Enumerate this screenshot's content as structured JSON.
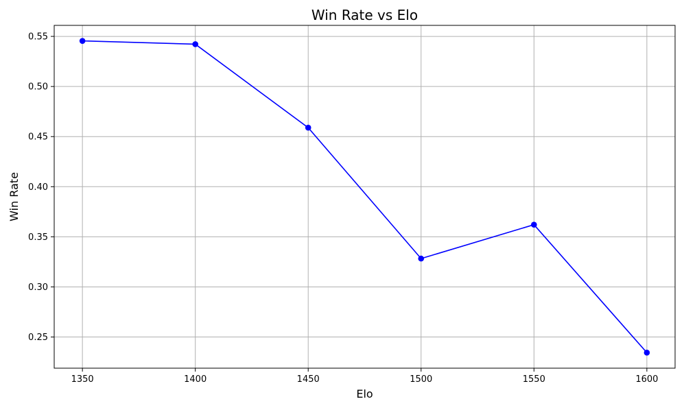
{
  "chart_data": {
    "type": "line",
    "title": "Win Rate vs Elo",
    "xlabel": "Elo",
    "ylabel": "Win Rate",
    "x": [
      1350,
      1400,
      1450,
      1500,
      1550,
      1600
    ],
    "x_tick_labels": [
      "1350",
      "1400",
      "1450",
      "1500",
      "1550",
      "1600"
    ],
    "y_ticks": [
      0.25,
      0.3,
      0.35,
      0.4,
      0.45,
      0.5,
      0.55
    ],
    "y_tick_labels": [
      "0.25",
      "0.30",
      "0.35",
      "0.40",
      "0.45",
      "0.50",
      "0.55"
    ],
    "series": [
      {
        "values": [
          0.5455,
          0.5422,
          0.4589,
          0.3283,
          0.3621,
          0.2344
        ],
        "color": "#0000ff",
        "marker": "circle"
      }
    ],
    "xlim": [
      1337.5,
      1612.5
    ],
    "ylim": [
      0.2189,
      0.561
    ],
    "grid": true,
    "legend": "none"
  }
}
